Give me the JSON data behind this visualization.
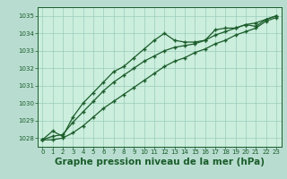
{
  "title": "Graphe pression niveau de la mer (hPa)",
  "background_color": "#b8ddd0",
  "plot_bg_color": "#cceedd",
  "grid_color": "#99ccbb",
  "line_color": "#1a5c2a",
  "xlim": [
    -0.5,
    23.5
  ],
  "ylim": [
    1027.5,
    1035.5
  ],
  "yticks": [
    1028,
    1029,
    1030,
    1031,
    1032,
    1033,
    1034,
    1035
  ],
  "xticks": [
    0,
    1,
    2,
    3,
    4,
    5,
    6,
    7,
    8,
    9,
    10,
    11,
    12,
    13,
    14,
    15,
    16,
    17,
    18,
    19,
    20,
    21,
    22,
    23
  ],
  "line1": [
    1027.9,
    1028.4,
    1028.1,
    1029.2,
    1030.0,
    1030.6,
    1031.2,
    1031.8,
    1032.1,
    1032.6,
    1033.1,
    1033.6,
    1034.0,
    1033.6,
    1033.5,
    1033.5,
    1033.6,
    1034.2,
    1034.3,
    1034.3,
    1034.5,
    1034.4,
    1034.8,
    1035.0
  ],
  "line2": [
    1027.9,
    1028.1,
    1028.2,
    1028.9,
    1029.5,
    1030.1,
    1030.7,
    1031.2,
    1031.6,
    1032.0,
    1032.4,
    1032.7,
    1033.0,
    1033.2,
    1033.3,
    1033.4,
    1033.6,
    1033.9,
    1034.1,
    1034.3,
    1034.5,
    1034.6,
    1034.8,
    1035.0
  ],
  "line3": [
    1027.9,
    1027.9,
    1028.0,
    1028.3,
    1028.7,
    1029.2,
    1029.7,
    1030.1,
    1030.5,
    1030.9,
    1031.3,
    1031.7,
    1032.1,
    1032.4,
    1032.6,
    1032.9,
    1033.1,
    1033.4,
    1033.6,
    1033.9,
    1034.1,
    1034.3,
    1034.7,
    1034.9
  ]
}
